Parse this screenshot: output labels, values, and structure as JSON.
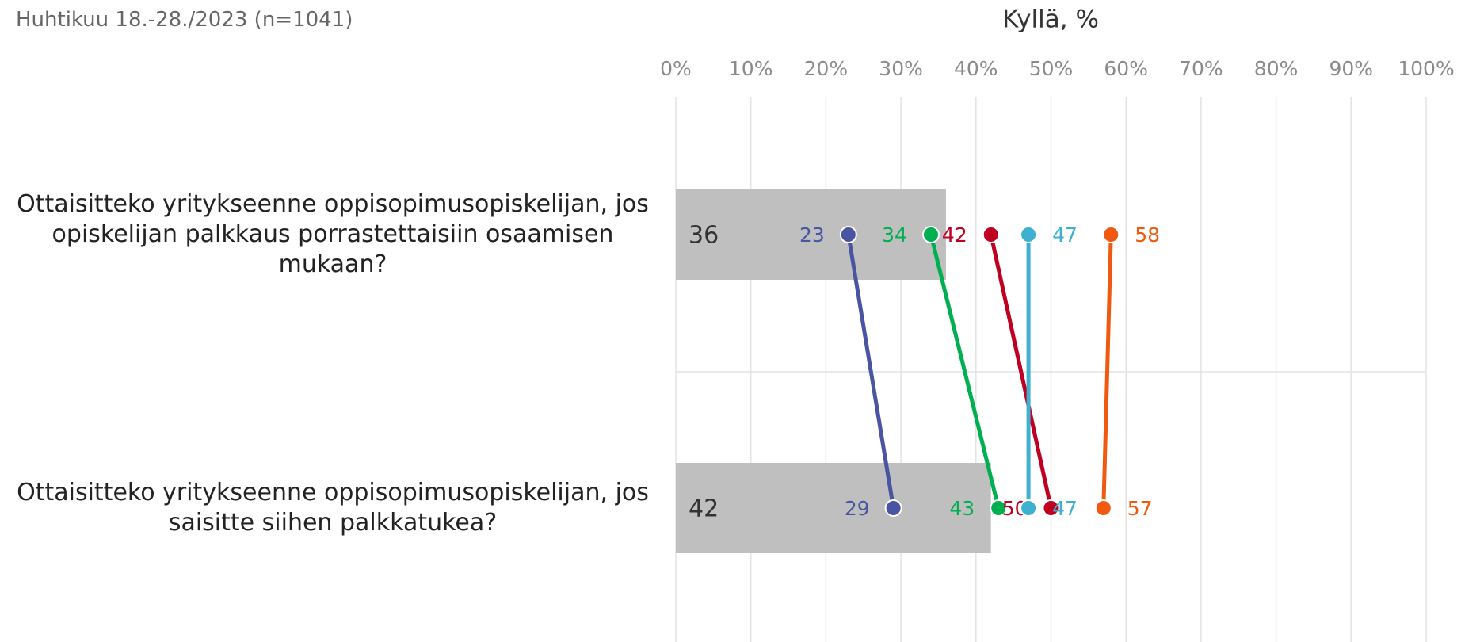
{
  "chart_data": {
    "type": "bar-dot",
    "subtitle": "Huhtikuu 18.-28./2023 (n=1041)",
    "title": "Kyllä, %",
    "categories": [
      "Ottaisitteko yritykseenne oppisopimusopiskelijan, jos opiskelijan palkkaus porrastettaisiin osaamisen mukaan?",
      "Ottaisitteko yritykseenne oppisopimusopiskelijan, jos saisitte siihen palkkatukea?"
    ],
    "values": [
      36,
      42
    ],
    "color": "#bfbfbf",
    "series": [
      {
        "color": "#4a55a2",
        "values": [
          23,
          29
        ]
      },
      {
        "color": "#00b050",
        "values": [
          34,
          43
        ]
      },
      {
        "color": "#c00020",
        "values": [
          42,
          50
        ]
      },
      {
        "color": "#40b0d0",
        "values": [
          47,
          47
        ]
      },
      {
        "color": "#f05a10",
        "values": [
          58,
          57
        ]
      }
    ],
    "xlim": [
      0,
      100
    ],
    "xticks": [
      {
        "value": 0,
        "label": "0%"
      },
      {
        "value": 10,
        "label": "10%"
      },
      {
        "value": 20,
        "label": "20%"
      },
      {
        "value": 30,
        "label": "30%"
      },
      {
        "value": 40,
        "label": "40%"
      },
      {
        "value": 50,
        "label": "50%"
      },
      {
        "value": 60,
        "label": "60%"
      },
      {
        "value": 70,
        "label": "70%"
      },
      {
        "value": 80,
        "label": "80%"
      },
      {
        "value": 90,
        "label": "90%"
      },
      {
        "value": 100,
        "label": "100%"
      }
    ],
    "grid": true
  }
}
